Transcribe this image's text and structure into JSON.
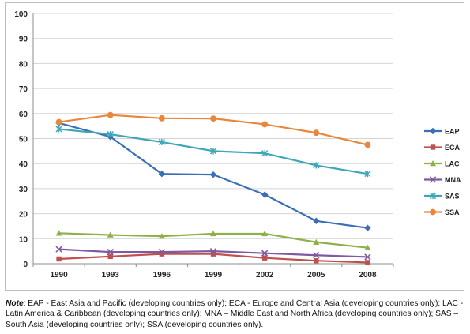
{
  "chart_data": {
    "type": "line",
    "title": "",
    "xlabel": "",
    "ylabel": "",
    "categories": [
      "1990",
      "1993",
      "1996",
      "1999",
      "2002",
      "2005",
      "2008"
    ],
    "ylim": [
      0,
      100
    ],
    "yticks": [
      0,
      10,
      20,
      30,
      40,
      50,
      60,
      70,
      80,
      90,
      100
    ],
    "grid": "horizontal",
    "legend_position": "right",
    "series": [
      {
        "name": "EAP",
        "color": "#3b6eb4",
        "marker": "diamond",
        "values": [
          56.2,
          50.7,
          35.9,
          35.6,
          27.6,
          17.1,
          14.3
        ]
      },
      {
        "name": "ECA",
        "color": "#c0504d",
        "marker": "square",
        "values": [
          1.9,
          2.9,
          3.9,
          3.9,
          2.3,
          1.2,
          0.5
        ]
      },
      {
        "name": "LAC",
        "color": "#8db04a",
        "marker": "triangle",
        "values": [
          12.2,
          11.5,
          11.0,
          12.0,
          12.0,
          8.6,
          6.4
        ]
      },
      {
        "name": "MNA",
        "color": "#7f5aa2",
        "marker": "x",
        "values": [
          5.8,
          4.7,
          4.7,
          5.0,
          4.2,
          3.4,
          2.7
        ]
      },
      {
        "name": "SAS",
        "color": "#3fa6b8",
        "marker": "star",
        "values": [
          53.8,
          51.7,
          48.6,
          45.0,
          44.1,
          39.3,
          35.9
        ]
      },
      {
        "name": "SSA",
        "color": "#e8873a",
        "marker": "circle",
        "values": [
          56.6,
          59.4,
          58.1,
          58.0,
          55.7,
          52.3,
          47.5
        ]
      }
    ]
  },
  "note": {
    "label": "Note",
    "text": ": EAP - East Asia and Pacific (developing countries only); ECA - Europe and Central Asia (developing countries only); LAC - Latin America & Caribbean (developing countries only); MNA – Middle East and North Africa (developing countries only); SAS – South Asia (developing countries only); SSA (developing countries only)."
  }
}
